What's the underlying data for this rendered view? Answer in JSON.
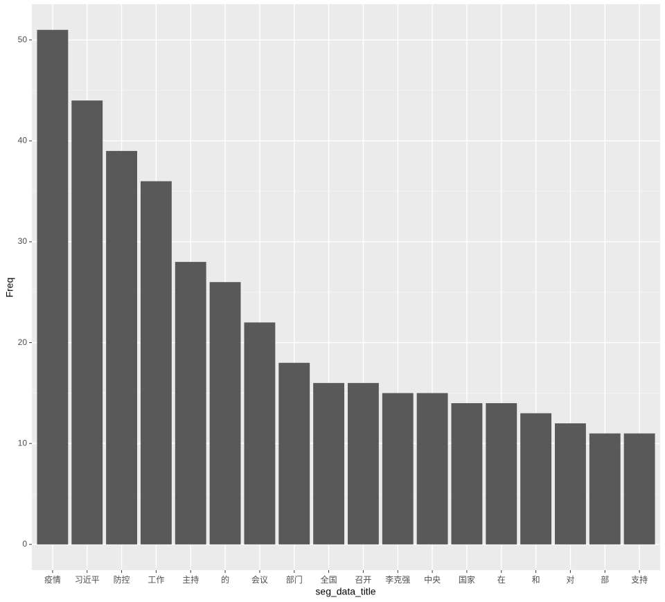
{
  "chart_data": {
    "type": "bar",
    "x_label": "seg_data_title",
    "y_label": "Freq",
    "categories": [
      "疫情",
      "习近平",
      "防控",
      "工作",
      "主持",
      "的",
      "会议",
      "部门",
      "全国",
      "召开",
      "李克强",
      "中央",
      "国家",
      "在",
      "和",
      "对",
      "部",
      "支持"
    ],
    "values": [
      51,
      44,
      39,
      36,
      28,
      26,
      22,
      18,
      16,
      16,
      15,
      15,
      14,
      14,
      13,
      12,
      11,
      11
    ],
    "color": "#595959",
    "ylim": [
      -2.55,
      53.55
    ],
    "yticks": [
      0,
      10,
      20,
      30,
      40,
      50
    ],
    "yminor": [
      5,
      15,
      25,
      35,
      45
    ],
    "grid": true
  }
}
